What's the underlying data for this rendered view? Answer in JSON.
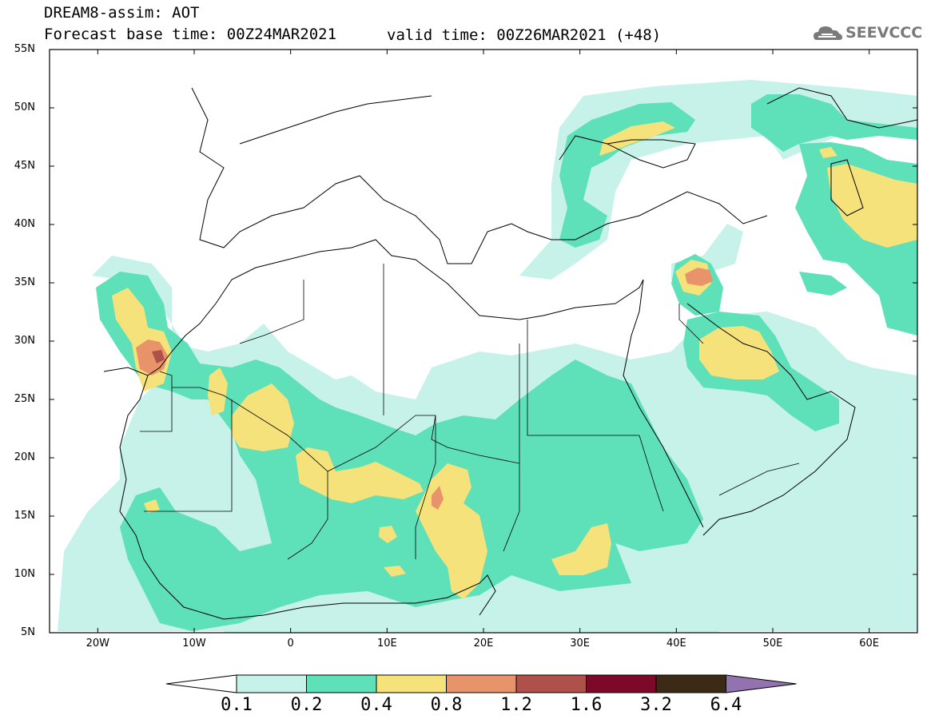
{
  "header": {
    "title_line1": "DREAM8-assim: AOT",
    "title_line2": "Forecast base time: 00Z24MAR2021",
    "valid_time": "valid time: 00Z26MAR2021 (+48)"
  },
  "logo": {
    "text": "SEEVCCC",
    "icon": "cloud-icon"
  },
  "map": {
    "lat_labels": [
      "55N",
      "50N",
      "45N",
      "40N",
      "35N",
      "30N",
      "25N",
      "20N",
      "15N",
      "10N",
      "5N"
    ],
    "lon_labels": [
      "20W",
      "10W",
      "0",
      "10E",
      "20E",
      "30E",
      "40E",
      "50E",
      "60E"
    ],
    "lat_range": [
      5,
      55
    ],
    "lon_range": [
      -25,
      65
    ],
    "field": "AOT"
  },
  "colorbar": {
    "levels": [
      "0.1",
      "0.2",
      "0.4",
      "0.8",
      "1.2",
      "1.6",
      "3.2",
      "6.4"
    ],
    "colors": [
      "#ffffff",
      "#c6f2ea",
      "#5ee0b8",
      "#f6e27a",
      "#e9936b",
      "#b0504a",
      "#7e0829",
      "#3d2a16",
      "#9273b0"
    ]
  }
}
